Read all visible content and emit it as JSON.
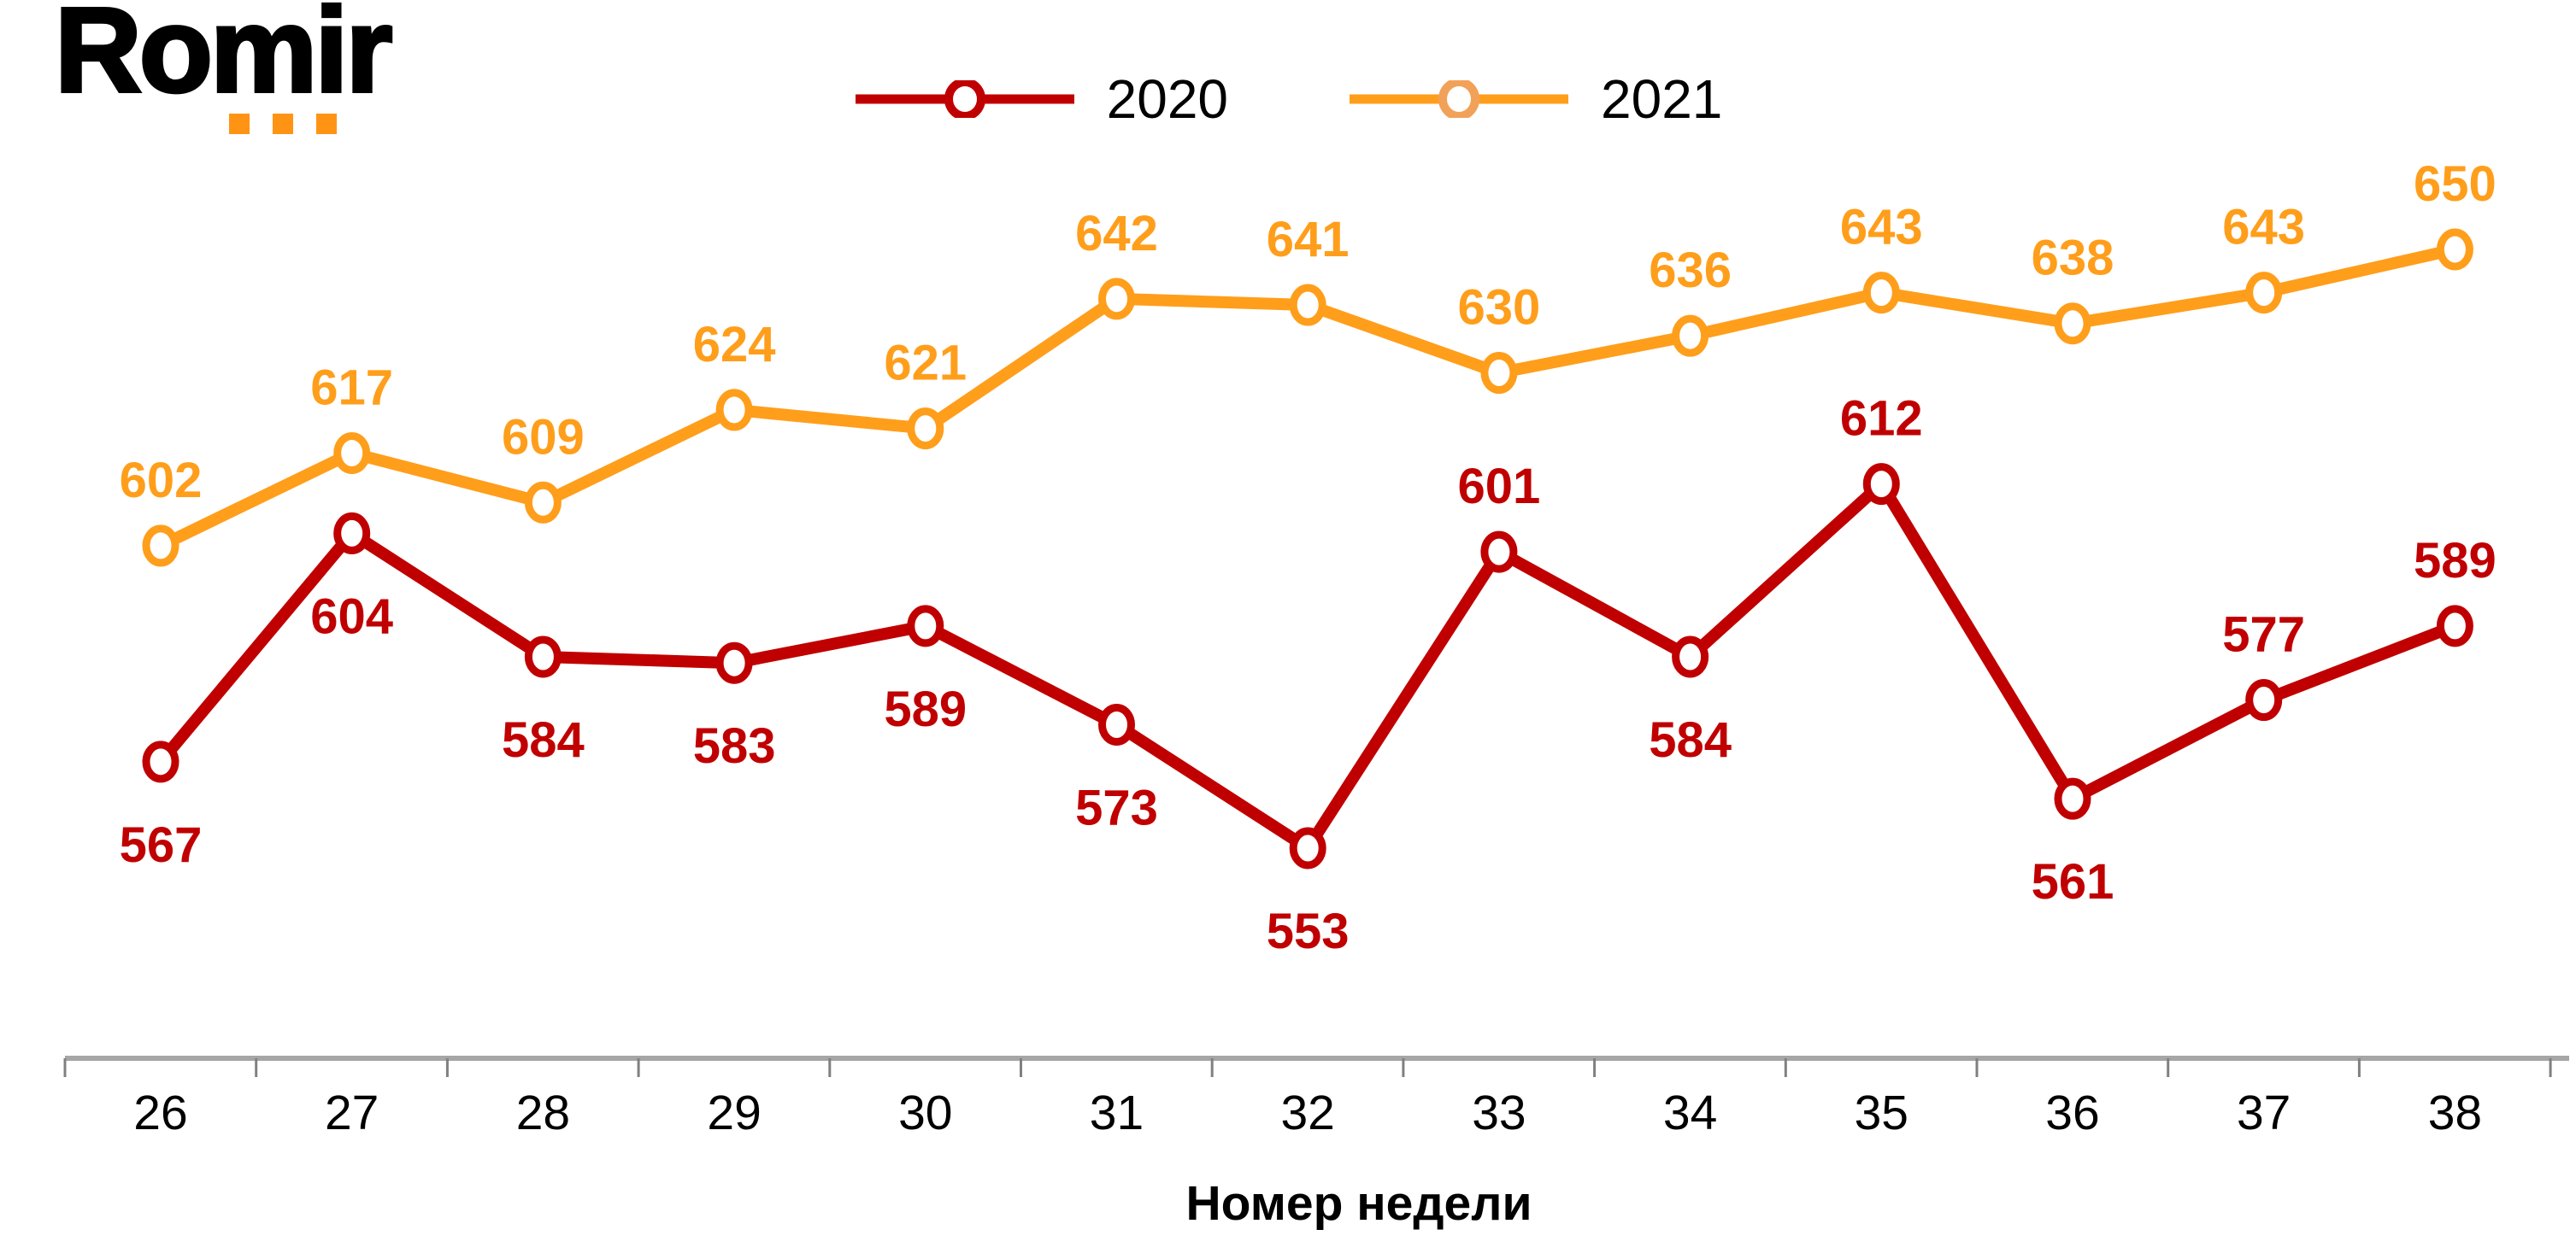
{
  "logo": {
    "text": "Romir",
    "dot_color": "#FF9414",
    "dot_count": 3
  },
  "legend": {
    "items": [
      {
        "label": "2020",
        "line_color": "#C00000",
        "marker_ring_color": "#C00000"
      },
      {
        "label": "2021",
        "line_color": "#FF9E1B",
        "marker_ring_color": "#F2A159"
      }
    ]
  },
  "chart_data": {
    "type": "line",
    "title": "",
    "x_label": "Номер недели",
    "categories": [
      26,
      27,
      28,
      29,
      30,
      31,
      32,
      33,
      34,
      35,
      36,
      37,
      38
    ],
    "series": [
      {
        "name": "2020",
        "color": "#C00000",
        "values": [
          567,
          604,
          584,
          583,
          589,
          573,
          553,
          601,
          584,
          612,
          561,
          577,
          589
        ],
        "data_label_positions": [
          "below",
          "below",
          "below",
          "below",
          "below",
          "below",
          "below",
          "above",
          "below",
          "above",
          "below",
          "above",
          "above"
        ]
      },
      {
        "name": "2021",
        "color": "#FF9E1B",
        "values": [
          602,
          617,
          609,
          624,
          621,
          642,
          641,
          630,
          636,
          643,
          638,
          643,
          650
        ],
        "data_label_positions": [
          "above",
          "above",
          "above",
          "above",
          "above",
          "above",
          "above",
          "above",
          "above",
          "above",
          "above",
          "above",
          "above"
        ]
      }
    ],
    "axis_color": "#A6A6A6",
    "tick_color": "#808080",
    "grid": false,
    "y_axis_visible": false,
    "legend_position": "top-center",
    "value_range_shown": [
      553,
      650
    ]
  }
}
